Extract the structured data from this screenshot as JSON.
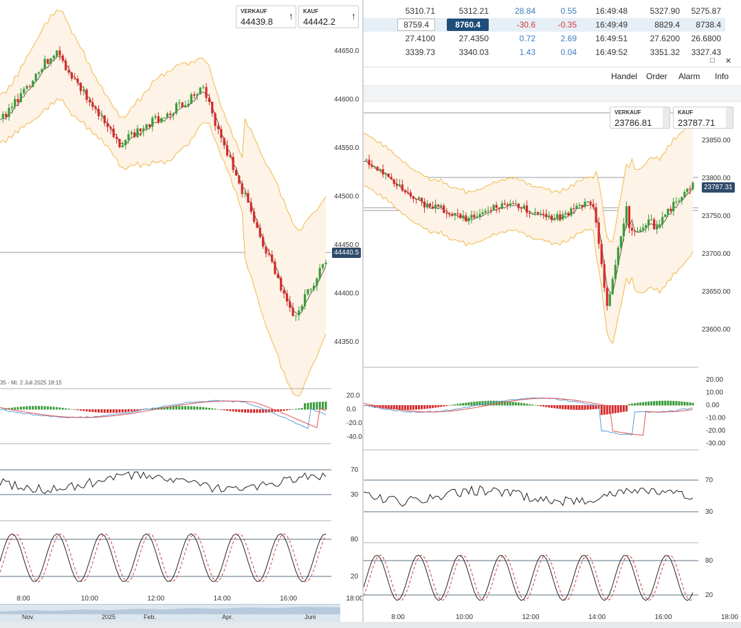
{
  "left_chart": {
    "quote": {
      "sell_label": "VERKAUF",
      "sell_value": "44439.8",
      "buy_label": "KAUF",
      "buy_value": "44442.2",
      "arrow": "↑"
    },
    "price_tag": "44440.5",
    "y_ticks": [
      "44650.0",
      "44600.0",
      "44550.0",
      "44500.0",
      "44450.0",
      "44400.0",
      "44350.0"
    ],
    "x_ticks": [
      "8:00",
      "10:00",
      "12:00",
      "14:00",
      "16:00",
      "18:00"
    ],
    "info_text": "35 - Mi. 2 Juli 2025 18:15",
    "macd_ticks": [
      "20.0",
      "0.0",
      "-20.0",
      "-40.0"
    ],
    "rsi_ticks": [
      "70",
      "30"
    ],
    "stoch_ticks": [
      "80",
      "20"
    ],
    "timeline_labels": [
      "Nov.",
      "2025",
      "Feb.",
      "Apr.",
      "Juni"
    ]
  },
  "quote_table": {
    "rows": [
      [
        "5310.71",
        "5312.21",
        "28.84",
        "0.55",
        "16:49:48",
        "5327.90",
        "5275.87"
      ],
      [
        "8759.4",
        "8760.4",
        "-30.6",
        "-0.35",
        "16:49:49",
        "8829.4",
        "8738.4"
      ],
      [
        "27.4100",
        "27.4350",
        "0.72",
        "2.69",
        "16:49:51",
        "27.6200",
        "26.6800"
      ],
      [
        "3339.73",
        "3340.03",
        "1.43",
        "0.04",
        "16:49:52",
        "3351.32",
        "3327.43"
      ]
    ]
  },
  "right_chart": {
    "menu": [
      "Handel",
      "Order",
      "Alarm",
      "Info"
    ],
    "quote": {
      "sell_label": "VERKAUF",
      "sell_value": "23786.81",
      "buy_label": "KAUF",
      "buy_value": "23787.71"
    },
    "price_tag": "23787.31",
    "y_ticks": [
      "23850.00",
      "23800.00",
      "23750.00",
      "23700.00",
      "23650.00",
      "23600.00"
    ],
    "x_ticks": [
      "8:00",
      "10:00",
      "12:00",
      "14:00",
      "16:00",
      "18:00"
    ],
    "macd_ticks": [
      "20.00",
      "10.00",
      "0.00",
      "-10.00",
      "-20.00",
      "-30.00"
    ],
    "rsi_ticks": [
      "70",
      "30"
    ],
    "stoch_ticks": [
      "80",
      "20"
    ],
    "window_icons": [
      "□",
      "✕"
    ]
  },
  "colors": {
    "up": "#3a9b3a",
    "down": "#d42a2a",
    "band": "#f0b84a",
    "band_fill": "#fdf3e6",
    "ma": "#6b5a55",
    "tag": "#2f4a6a",
    "macd_blue": "#5b9bd5",
    "macd_red": "#e05050"
  }
}
